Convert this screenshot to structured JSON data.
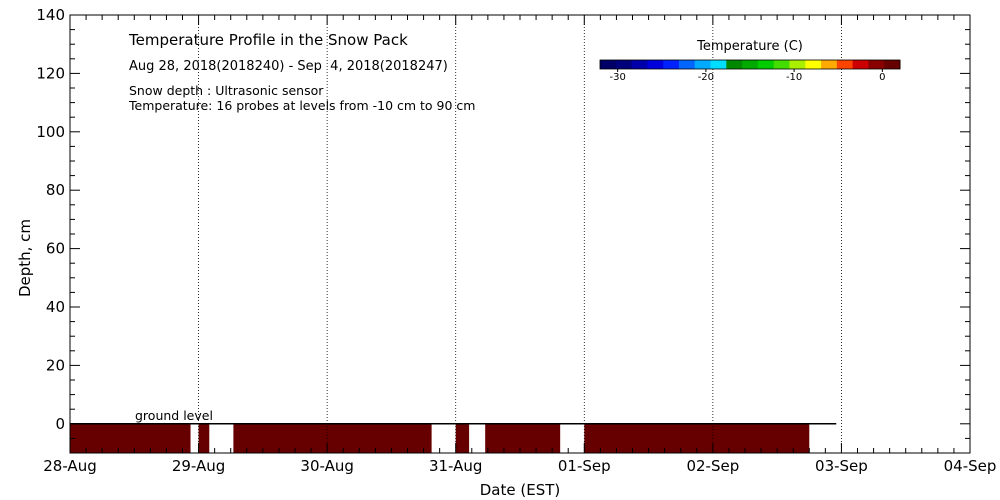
{
  "chart_data": {
    "type": "heatmap",
    "title": "Temperature Profile in the Snow Pack",
    "subtitle": "Aug 28, 2018(2018240) - Sep  4, 2018(2018247)",
    "notes": [
      "Snow depth : Ultrasonic sensor",
      "Temperature: 16 probes at levels from -10 cm to 90 cm"
    ],
    "xlabel": "Date (EST)",
    "ylabel": "Depth, cm",
    "x_ticks": [
      "28-Aug",
      "29-Aug",
      "30-Aug",
      "31-Aug",
      "01-Sep",
      "02-Sep",
      "03-Sep",
      "04-Sep"
    ],
    "x_range_days": [
      0,
      7
    ],
    "ylim": [
      -10,
      140
    ],
    "y_ticks": [
      0,
      20,
      40,
      60,
      80,
      100,
      120,
      140
    ],
    "grid": "dotted vertical at day ticks",
    "ground_level_label": "ground level",
    "ground_level": 0,
    "colorbar": {
      "title": "Temperature (C)",
      "range": [
        -32,
        2
      ],
      "ticks": [
        "-30",
        "-20",
        "-10",
        "0"
      ],
      "tick_values": [
        -30,
        -20,
        -10,
        0
      ],
      "colors": [
        "#000066",
        "#00007a",
        "#0000aa",
        "#0000dd",
        "#0022ff",
        "#0066ff",
        "#00aaff",
        "#00ddff",
        "#008800",
        "#00aa00",
        "#00cc00",
        "#44dd00",
        "#aaee00",
        "#ffff00",
        "#ffaa00",
        "#ff4400",
        "#cc0000",
        "#880000",
        "#660000"
      ]
    },
    "segments_color": "#660000",
    "segments_depth": [
      -10,
      0
    ],
    "segments": [
      {
        "start": "28-Aug 00:00",
        "end": "28-Aug 22:30",
        "temp_c": 2
      },
      {
        "start": "29-Aug 00:00",
        "end": "29-Aug 02:00",
        "temp_c": 2
      },
      {
        "start": "29-Aug 06:30",
        "end": "30-Aug 19:30",
        "temp_c": 2
      },
      {
        "start": "31-Aug 00:00",
        "end": "31-Aug 02:30",
        "temp_c": 2
      },
      {
        "start": "31-Aug 05:30",
        "end": "31-Aug 19:30",
        "temp_c": 2
      },
      {
        "start": "01-Sep 00:00",
        "end": "02-Sep 18:00",
        "temp_c": 2
      }
    ]
  }
}
